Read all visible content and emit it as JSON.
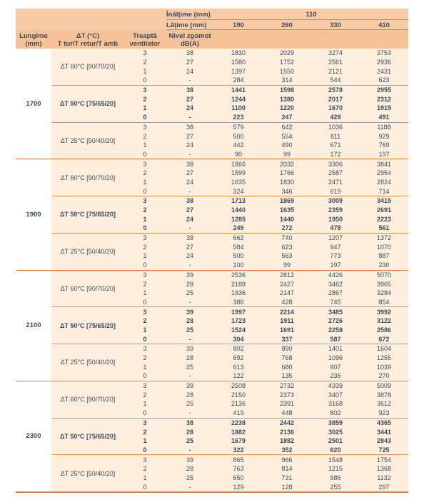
{
  "colors": {
    "accent_line": "#e5813e",
    "header_bg": "#f8cba7",
    "header_bg_lower": "#f6c298",
    "body_bg": "#fdeedd",
    "text": "#3f4b5c"
  },
  "header": {
    "inaltime_label": "Înălţime (mm)",
    "inaltime_value": "110",
    "latime_label": "Lăţime (mm)",
    "latime_values": [
      "190",
      "260",
      "330",
      "410"
    ],
    "col_headers": {
      "lungime_l1": "Lungime",
      "lungime_l2": "(mm)",
      "dt_l1": "ΔT (°C)",
      "dt_l2": "T tur/T retur/T amb",
      "fan_l1": "Treaptă",
      "fan_l2": "ventilator",
      "noise_l1": "Nivel zgomot",
      "noise_l2": "dB(A)"
    }
  },
  "groups": [
    {
      "length": "1700",
      "blocks": [
        {
          "dt": "ΔT 60°C [90/70/20]",
          "bold": false,
          "rows": [
            {
              "stage": "3",
              "noise": "38",
              "values": [
                "1830",
                "2029",
                "3274",
                "3753"
              ]
            },
            {
              "stage": "2",
              "noise": "27",
              "values": [
                "1580",
                "1752",
                "2561",
                "2936"
              ]
            },
            {
              "stage": "1",
              "noise": "24",
              "values": [
                "1397",
                "1550",
                "2121",
                "2431"
              ]
            },
            {
              "stage": "0",
              "noise": "-",
              "values": [
                "284",
                "314",
                "544",
                "623"
              ]
            }
          ]
        },
        {
          "dt": "ΔT 50°C [75/65/20]",
          "bold": true,
          "rows": [
            {
              "stage": "3",
              "noise": "38",
              "values": [
                "1441",
                "1598",
                "2578",
                "2955"
              ]
            },
            {
              "stage": "2",
              "noise": "27",
              "values": [
                "1244",
                "1380",
                "2017",
                "2312"
              ]
            },
            {
              "stage": "1",
              "noise": "24",
              "values": [
                "1100",
                "1220",
                "1670",
                "1915"
              ]
            },
            {
              "stage": "0",
              "noise": "-",
              "values": [
                "223",
                "247",
                "428",
                "491"
              ]
            }
          ]
        },
        {
          "dt": "ΔT 25°C [50/40/20]",
          "bold": false,
          "rows": [
            {
              "stage": "3",
              "noise": "38",
              "values": [
                "579",
                "642",
                "1036",
                "1188"
              ]
            },
            {
              "stage": "2",
              "noise": "27",
              "values": [
                "500",
                "554",
                "811",
                "929"
              ]
            },
            {
              "stage": "1",
              "noise": "24",
              "values": [
                "442",
                "490",
                "671",
                "769"
              ]
            },
            {
              "stage": "0",
              "noise": "-",
              "values": [
                "90",
                "99",
                "172",
                "197"
              ]
            }
          ]
        }
      ]
    },
    {
      "length": "1900",
      "blocks": [
        {
          "dt": "ΔT 60°C [90/70/20]",
          "bold": false,
          "rows": [
            {
              "stage": "3",
              "noise": "38",
              "values": [
                "1866",
                "2032",
                "3306",
                "3841"
              ]
            },
            {
              "stage": "2",
              "noise": "27",
              "values": [
                "1599",
                "1766",
                "2587",
                "2954"
              ]
            },
            {
              "stage": "1",
              "noise": "24",
              "values": [
                "1635",
                "1830",
                "2471",
                "2824"
              ]
            },
            {
              "stage": "0",
              "noise": "-",
              "values": [
                "324",
                "346",
                "619",
                "714"
              ]
            }
          ]
        },
        {
          "dt": "ΔT 50°C [75/65/20]",
          "bold": true,
          "rows": [
            {
              "stage": "3",
              "noise": "38",
              "values": [
                "1713",
                "1869",
                "3009",
                "3415"
              ]
            },
            {
              "stage": "2",
              "noise": "27",
              "values": [
                "1440",
                "1635",
                "2359",
                "2691"
              ]
            },
            {
              "stage": "1",
              "noise": "24",
              "values": [
                "1285",
                "1440",
                "1950",
                "2223"
              ]
            },
            {
              "stage": "0",
              "noise": "-",
              "values": [
                "249",
                "272",
                "478",
                "561"
              ]
            }
          ]
        },
        {
          "dt": "ΔT 25°C [50/40/20]",
          "bold": false,
          "rows": [
            {
              "stage": "3",
              "noise": "38",
              "values": [
                "662",
                "740",
                "1207",
                "1372"
              ]
            },
            {
              "stage": "2",
              "noise": "27",
              "values": [
                "584",
                "623",
                "947",
                "1070"
              ]
            },
            {
              "stage": "1",
              "noise": "24",
              "values": [
                "500",
                "563",
                "773",
                "887"
              ]
            },
            {
              "stage": "0",
              "noise": "-",
              "values": [
                "100",
                "99",
                "197",
                "230"
              ]
            }
          ]
        }
      ]
    },
    {
      "length": "2100",
      "blocks": [
        {
          "dt": "ΔT 60°C [90/70/20]",
          "bold": false,
          "rows": [
            {
              "stage": "3",
              "noise": "39",
              "values": [
                "2536",
                "2812",
                "4426",
                "5070"
              ]
            },
            {
              "stage": "2",
              "noise": "28",
              "values": [
                "2188",
                "2427",
                "3462",
                "3965"
              ]
            },
            {
              "stage": "1",
              "noise": "25",
              "values": [
                "1936",
                "2147",
                "2867",
                "3284"
              ]
            },
            {
              "stage": "0",
              "noise": "-",
              "values": [
                "386",
                "428",
                "745",
                "854"
              ]
            }
          ]
        },
        {
          "dt": "ΔT 50°C [75/65/20]",
          "bold": true,
          "rows": [
            {
              "stage": "3",
              "noise": "39",
              "values": [
                "1997",
                "2214",
                "3485",
                "3992"
              ]
            },
            {
              "stage": "2",
              "noise": "28",
              "values": [
                "1723",
                "1911",
                "2726",
                "3122"
              ]
            },
            {
              "stage": "1",
              "noise": "25",
              "values": [
                "1524",
                "1691",
                "2258",
                "2586"
              ]
            },
            {
              "stage": "0",
              "noise": "-",
              "values": [
                "304",
                "337",
                "587",
                "672"
              ]
            }
          ]
        },
        {
          "dt": "ΔT 25°C [50/40/20]",
          "bold": false,
          "rows": [
            {
              "stage": "3",
              "noise": "39",
              "values": [
                "802",
                "890",
                "1401",
                "1604"
              ]
            },
            {
              "stage": "2",
              "noise": "28",
              "values": [
                "692",
                "768",
                "1096",
                "1255"
              ]
            },
            {
              "stage": "1",
              "noise": "25",
              "values": [
                "613",
                "680",
                "907",
                "1039"
              ]
            },
            {
              "stage": "0",
              "noise": "-",
              "values": [
                "122",
                "135",
                "236",
                "270"
              ]
            }
          ]
        }
      ]
    },
    {
      "length": "2300",
      "blocks": [
        {
          "dt": "ΔT 60°C [90/70/20]",
          "bold": false,
          "rows": [
            {
              "stage": "3",
              "noise": "39",
              "values": [
                "2508",
                "2732",
                "4339",
                "5009"
              ]
            },
            {
              "stage": "2",
              "noise": "28",
              "values": [
                "2150",
                "2373",
                "3407",
                "3878"
              ]
            },
            {
              "stage": "1",
              "noise": "25",
              "values": [
                "2136",
                "2391",
                "3168",
                "3612"
              ]
            },
            {
              "stage": "0",
              "noise": "-",
              "values": [
                "419",
                "448",
                "802",
                "923"
              ]
            }
          ]
        },
        {
          "dt": "ΔT 50°C [75/65/20]",
          "bold": true,
          "rows": [
            {
              "stage": "3",
              "noise": "38",
              "values": [
                "2238",
                "2442",
                "3859",
                "4365"
              ]
            },
            {
              "stage": "2",
              "noise": "28",
              "values": [
                "1882",
                "2136",
                "3025",
                "3441"
              ]
            },
            {
              "stage": "1",
              "noise": "25",
              "values": [
                "1679",
                "1882",
                "2501",
                "2843"
              ]
            },
            {
              "stage": "0",
              "noise": "-",
              "values": [
                "322",
                "352",
                "620",
                "725"
              ]
            }
          ]
        },
        {
          "dt": "ΔT 25°C [50/40/20]",
          "bold": false,
          "rows": [
            {
              "stage": "3",
              "noise": "39",
              "values": [
                "865",
                "966",
                "1548",
                "1754"
              ]
            },
            {
              "stage": "2",
              "noise": "28",
              "values": [
                "763",
                "814",
                "1215",
                "1368"
              ]
            },
            {
              "stage": "1",
              "noise": "25",
              "values": [
                "650",
                "731",
                "986",
                "1132"
              ]
            },
            {
              "stage": "0",
              "noise": "-",
              "values": [
                "129",
                "128",
                "255",
                "297"
              ]
            }
          ]
        }
      ]
    }
  ]
}
